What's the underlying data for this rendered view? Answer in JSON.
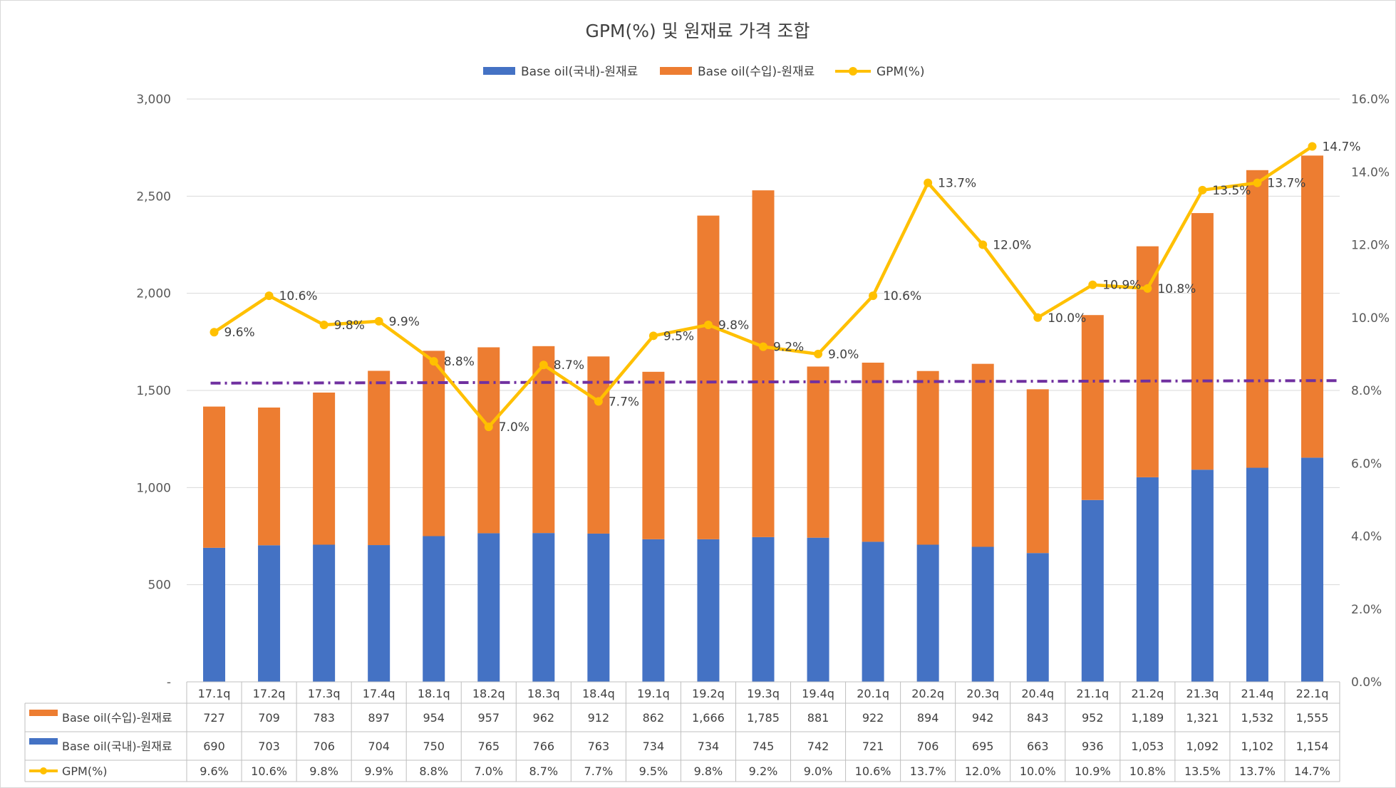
{
  "chart_data": {
    "type": "bar",
    "title": "GPM(%) 및 원재료 가격 조합",
    "categories": [
      "17.1q",
      "17.2q",
      "17.3q",
      "17.4q",
      "18.1q",
      "18.2q",
      "18.3q",
      "18.4q",
      "19.1q",
      "19.2q",
      "19.3q",
      "19.4q",
      "20.1q",
      "20.2q",
      "20.3q",
      "20.4q",
      "21.1q",
      "21.2q",
      "21.3q",
      "21.4q",
      "22.1q"
    ],
    "series": [
      {
        "name": "Base oil(국내)-원재료",
        "kind": "stacked-bar",
        "axis": "left",
        "color": "#4472C4",
        "values": [
          690,
          703,
          706,
          704,
          750,
          765,
          766,
          763,
          734,
          734,
          745,
          742,
          721,
          706,
          695,
          663,
          936,
          1053,
          1092,
          1102,
          1154
        ]
      },
      {
        "name": "Base oil(수입)-원재료",
        "kind": "stacked-bar",
        "axis": "left",
        "color": "#ED7D31",
        "values": [
          727,
          709,
          783,
          897,
          954,
          957,
          962,
          912,
          862,
          1666,
          1785,
          881,
          922,
          894,
          942,
          843,
          952,
          1189,
          1321,
          1532,
          1555
        ]
      },
      {
        "name": "GPM(%)",
        "kind": "line",
        "axis": "right",
        "color": "#FFC000",
        "values": [
          9.6,
          10.6,
          9.8,
          9.9,
          8.8,
          7.0,
          8.7,
          7.7,
          9.5,
          9.8,
          9.2,
          9.0,
          10.6,
          13.7,
          12.0,
          10.0,
          10.9,
          10.8,
          13.5,
          13.7,
          14.7
        ]
      }
    ],
    "legend": [
      "Base oil(국내)-원재료",
      "Base oil(수입)-원재료",
      "GPM(%)"
    ],
    "legend_position": "top",
    "y_left": {
      "ylim": [
        0,
        3000
      ],
      "ticks": [
        0,
        500,
        1000,
        1500,
        2000,
        2500,
        3000
      ],
      "tick_labels": [
        "-",
        "500",
        "1,000",
        "1,500",
        "2,000",
        "2,500",
        "3,000"
      ]
    },
    "y_right": {
      "ylim": [
        0,
        16
      ],
      "ticks": [
        0,
        2,
        4,
        6,
        8,
        10,
        12,
        14,
        16
      ],
      "tick_labels": [
        "0.0%",
        "2.0%",
        "4.0%",
        "6.0%",
        "8.0%",
        "10.0%",
        "12.0%",
        "14.0%",
        "16.0%"
      ]
    },
    "trendline": {
      "style": "dash-dot",
      "color": "#7030A0",
      "axis": "right",
      "start": 8.2,
      "end": 8.27
    },
    "gpm_labels": [
      "9.6%",
      "10.6%",
      "9.8%",
      "9.9%",
      "8.8%",
      "7.0%",
      "8.7%",
      "7.7%",
      "9.5%",
      "9.8%",
      "9.2%",
      "9.0%",
      "10.6%",
      "13.7%",
      "12.0%",
      "10.0%",
      "10.9%",
      "10.8%",
      "13.5%",
      "13.7%",
      "14.7%"
    ],
    "data_table": {
      "rows": [
        {
          "name": "Base oil(수입)-원재료",
          "color": "#ED7D31",
          "marker": "rect",
          "values": [
            "727",
            "709",
            "783",
            "897",
            "954",
            "957",
            "962",
            "912",
            "862",
            "1,666",
            "1,785",
            "881",
            "922",
            "894",
            "942",
            "843",
            "952",
            "1,189",
            "1,321",
            "1,532",
            "1,555"
          ]
        },
        {
          "name": "Base oil(국내)-원재료",
          "color": "#4472C4",
          "marker": "rect",
          "values": [
            "690",
            "703",
            "706",
            "704",
            "750",
            "765",
            "766",
            "763",
            "734",
            "734",
            "745",
            "742",
            "721",
            "706",
            "695",
            "663",
            "936",
            "1,053",
            "1,092",
            "1,102",
            "1,154"
          ]
        },
        {
          "name": "GPM(%)",
          "color": "#FFC000",
          "marker": "line",
          "values": [
            "9.6%",
            "10.6%",
            "9.8%",
            "9.9%",
            "8.8%",
            "7.0%",
            "8.7%",
            "7.7%",
            "9.5%",
            "9.8%",
            "9.2%",
            "9.0%",
            "10.6%",
            "13.7%",
            "12.0%",
            "10.0%",
            "10.9%",
            "10.8%",
            "13.5%",
            "13.7%",
            "14.7%"
          ]
        }
      ]
    },
    "grid": true
  }
}
